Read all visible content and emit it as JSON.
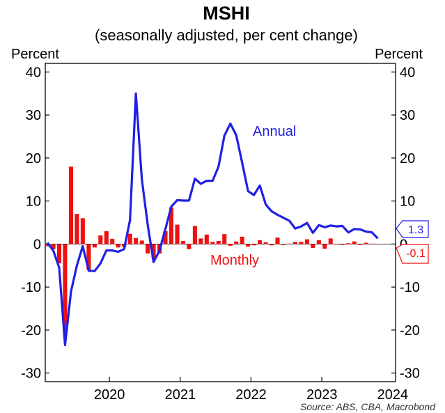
{
  "colors": {
    "annual": "#1f1fe6",
    "monthly": "#ee1111",
    "axis": "#000000",
    "background": "#ffffff"
  },
  "chart_data": {
    "type": "bar+line",
    "title": "MSHI",
    "subtitle": "(seasonally adjusted, per cent change)",
    "ylabel_left": "Percent",
    "ylabel_right": "Percent",
    "ylim": [
      -32,
      42
    ],
    "yticks": [
      -30,
      -20,
      -10,
      0,
      10,
      20,
      30,
      40
    ],
    "ytick_labels": [
      "-30",
      "-20",
      "-10",
      "0",
      "10",
      "20",
      "30",
      "40"
    ],
    "xlim": [
      2019.583,
      2024.5
    ],
    "xticks": [
      "2020",
      "2021",
      "2022",
      "2023",
      "2024"
    ],
    "xtick_values": [
      2020.0,
      2021.0,
      2022.0,
      2023.0,
      2024.0
    ],
    "source": "Source: ABS, CBA, Macrobond",
    "series": [
      {
        "name": "Annual",
        "kind": "line",
        "label_text": "Annual",
        "x": [
          2019.583,
          2019.667,
          2019.75,
          2019.833,
          2019.917,
          2020.0,
          2020.083,
          2020.167,
          2020.25,
          2020.333,
          2020.417,
          2020.5,
          2020.583,
          2020.667,
          2020.75,
          2020.833,
          2020.917,
          2021.0,
          2021.083,
          2021.167,
          2021.25,
          2021.333,
          2021.417,
          2021.5,
          2021.583,
          2021.667,
          2021.75,
          2021.833,
          2021.917,
          2022.0,
          2022.083,
          2022.167,
          2022.25,
          2022.333,
          2022.417,
          2022.5,
          2022.583,
          2022.667,
          2022.75,
          2022.833,
          2022.917,
          2023.0,
          2023.083,
          2023.167,
          2023.25,
          2023.333,
          2023.417,
          2023.5,
          2023.583,
          2023.667,
          2023.75,
          2023.833,
          2023.917,
          2024.0,
          2024.083,
          2024.167,
          2024.25
        ],
        "values": [
          0.3,
          -1.5,
          -5.5,
          -23.5,
          -11,
          -5,
          -0.5,
          -6.2,
          -6.3,
          -4.5,
          -1.5,
          -1.5,
          -1.8,
          -1.2,
          5.6,
          35,
          15,
          4.5,
          -4.2,
          -1.5,
          3.5,
          8.7,
          10.2,
          10.1,
          10.1,
          15.2,
          14,
          14.7,
          14.7,
          18,
          25.2,
          28,
          25.3,
          19,
          12.3,
          11.4,
          13.6,
          9.2,
          7.6,
          6.8,
          6.1,
          5.4,
          3.6,
          4.1,
          4.9,
          2.6,
          4.4,
          3.9,
          4.3,
          4.1,
          4.2,
          2.7,
          3.5,
          3.4,
          2.9,
          2.7,
          1.3
        ]
      },
      {
        "name": "Monthly",
        "kind": "bar",
        "label_text": "Monthly",
        "x": [
          2019.583,
          2019.667,
          2019.75,
          2019.833,
          2019.917,
          2020.0,
          2020.083,
          2020.167,
          2020.25,
          2020.333,
          2020.417,
          2020.5,
          2020.583,
          2020.667,
          2020.75,
          2020.833,
          2020.917,
          2021.0,
          2021.083,
          2021.167,
          2021.25,
          2021.333,
          2021.417,
          2021.5,
          2021.583,
          2021.667,
          2021.75,
          2021.833,
          2021.917,
          2022.0,
          2022.083,
          2022.167,
          2022.25,
          2022.333,
          2022.417,
          2022.5,
          2022.583,
          2022.667,
          2022.75,
          2022.833,
          2022.917,
          2023.0,
          2023.083,
          2023.167,
          2023.25,
          2023.333,
          2023.417,
          2023.5,
          2023.583,
          2023.667,
          2023.75,
          2023.833,
          2023.917,
          2024.0,
          2024.083,
          2024.167,
          2024.25
        ],
        "values": [
          -0.5,
          -1.2,
          -4.5,
          -21,
          18,
          7,
          6,
          -6,
          -0.8,
          2,
          3,
          1.2,
          -0.8,
          -0.6,
          2.4,
          1.4,
          0.8,
          -2.2,
          -3.2,
          -2.2,
          3,
          8.5,
          4.5,
          0.7,
          -1.2,
          4.2,
          1.3,
          2.2,
          0.5,
          0.7,
          2.3,
          -0.4,
          0.6,
          1.7,
          -0.6,
          -0.3,
          0.9,
          0.4,
          -0.3,
          1.5,
          -0.2,
          0.1,
          0.5,
          0.5,
          1.1,
          -0.9,
          0.9,
          -1.1,
          1.3,
          -0.1,
          -0.2,
          0.2,
          0.6,
          -0.2,
          0.3,
          0.1,
          -0.1
        ]
      }
    ],
    "end_labels": {
      "annual": "1.3",
      "monthly": "-0.1"
    }
  }
}
